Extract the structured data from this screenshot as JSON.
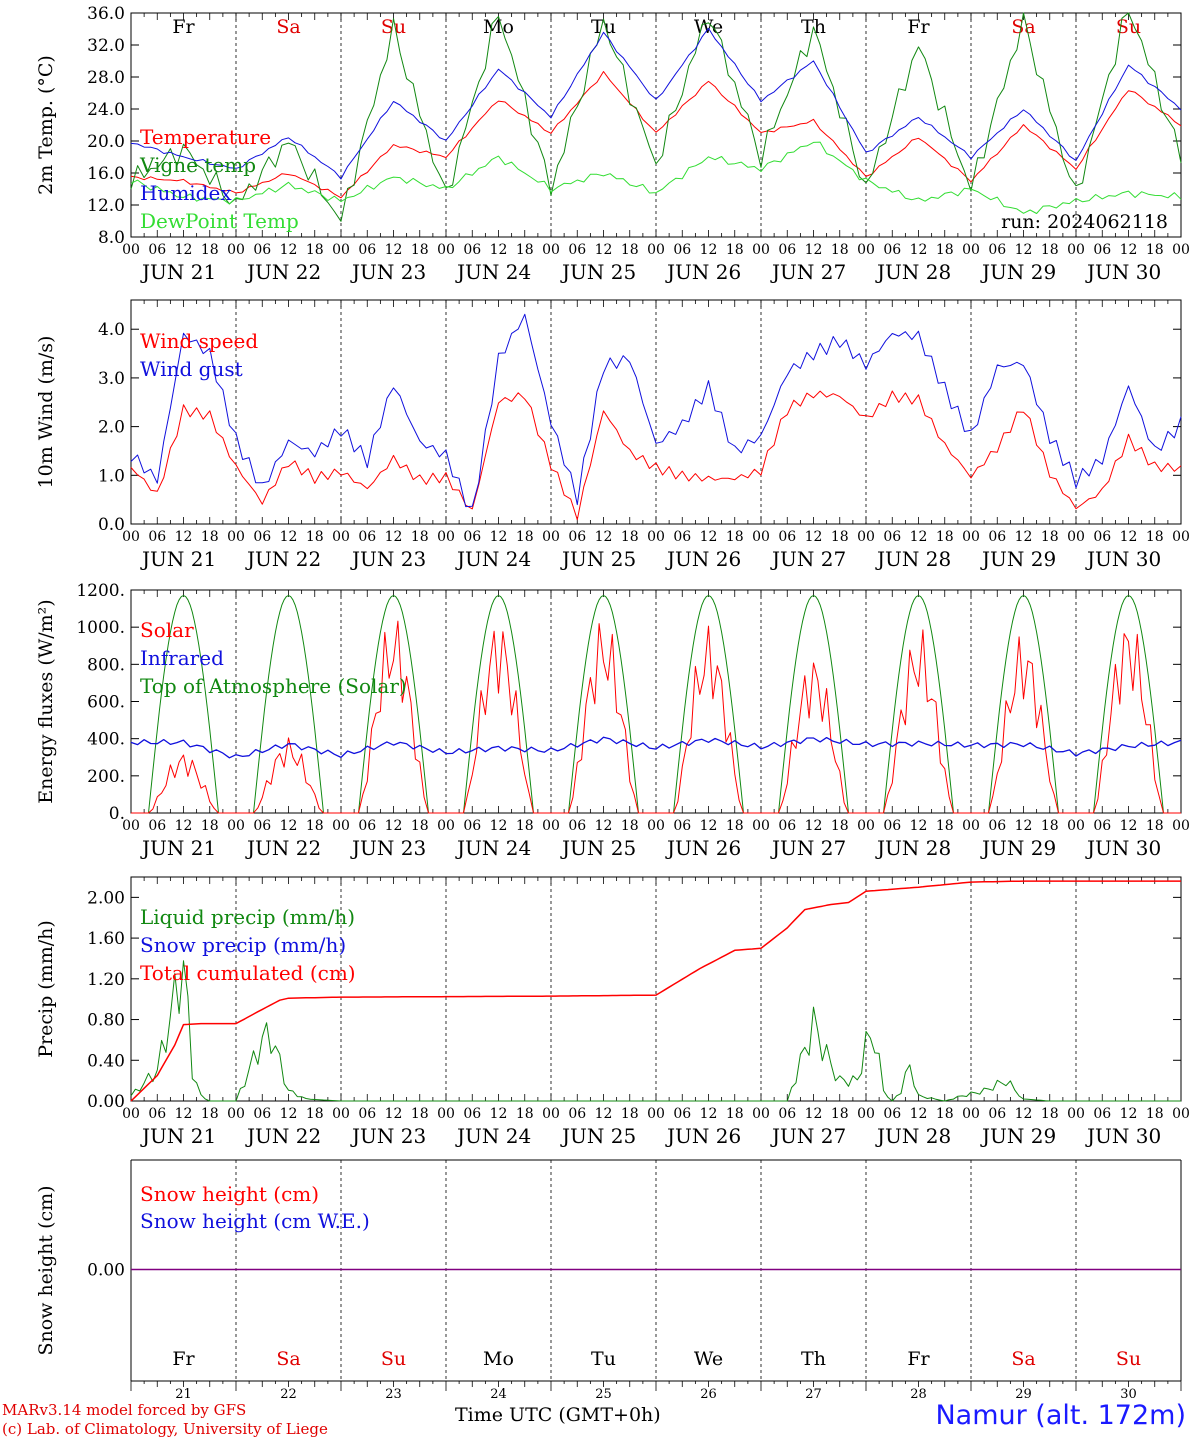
{
  "run_label": "run: 2024062118",
  "footer": {
    "model_line": "MARv3.14 model forced by GFS",
    "credit_line": "(c) Lab. of Climatology, University of Liege",
    "time_label": "Time UTC (GMT+0h)",
    "station": "Namur (alt. 172m)"
  },
  "colors": {
    "red": "#ff0000",
    "green": "#118811",
    "blue": "#1010dd",
    "lime": "#33dd33",
    "purple": "#800080"
  },
  "days": {
    "names": [
      "Fr",
      "Sa",
      "Su",
      "Mo",
      "Tu",
      "We",
      "Th",
      "Fr",
      "Sa",
      "Su"
    ],
    "weekend": [
      false,
      true,
      true,
      false,
      false,
      false,
      false,
      false,
      true,
      true
    ],
    "labels": [
      "JUN 21",
      "JUN 22",
      "JUN 23",
      "JUN 24",
      "JUN 25",
      "JUN 26",
      "JUN 27",
      "JUN 28",
      "JUN 29",
      "JUN 30"
    ],
    "numbers": [
      "21",
      "22",
      "23",
      "24",
      "25",
      "26",
      "27",
      "28",
      "29",
      "30"
    ],
    "hour_ticks": [
      "00",
      "06",
      "12",
      "18"
    ],
    "last_tick": "00"
  },
  "chart_data": [
    {
      "type": "line",
      "ylabel": "2m Temp. (°C)",
      "ylim": [
        8,
        36
      ],
      "yticks": [
        "8.0",
        "12.0",
        "16.0",
        "20.0",
        "24.0",
        "28.0",
        "32.0",
        "36.0"
      ],
      "x_hours": [
        0,
        12,
        24,
        36,
        48,
        60,
        72,
        84,
        96,
        108,
        120,
        132,
        144,
        156,
        168,
        180,
        192,
        204,
        216,
        228,
        240
      ],
      "series": [
        {
          "name": "Temperature",
          "color": "red",
          "values": [
            15.5,
            15,
            13.5,
            16,
            13,
            19.5,
            18,
            25.2,
            21,
            28.5,
            21,
            27.5,
            21,
            22.5,
            15.5,
            20.5,
            15,
            22,
            16.5,
            26.5,
            22
          ]
        },
        {
          "name": "Vigne temp",
          "color": "green",
          "values": [
            15,
            19,
            12,
            20,
            10,
            34,
            13,
            36,
            14,
            35,
            17,
            36,
            18,
            34,
            14,
            32,
            14,
            35,
            13,
            37,
            18
          ]
        },
        {
          "name": "Humidex",
          "color": "blue",
          "values": [
            19.8,
            18,
            16.5,
            20.5,
            15.5,
            25,
            20,
            29,
            23,
            33.5,
            25,
            34,
            25,
            30,
            18.5,
            23,
            18,
            24,
            17.5,
            29.5,
            24
          ]
        },
        {
          "name": "DewPoint Temp",
          "color": "lime",
          "values": [
            15,
            13,
            12.5,
            14.5,
            12.5,
            15.5,
            14,
            18,
            14,
            16,
            13.5,
            18,
            16.5,
            20,
            15,
            12.5,
            14,
            11,
            12.5,
            13.5,
            13
          ]
        }
      ]
    },
    {
      "type": "line",
      "ylabel": "10m Wind (m/s)",
      "ylim": [
        0,
        4.6
      ],
      "yticks": [
        "0.0",
        "1.0",
        "2.0",
        "3.0",
        "4.0"
      ],
      "x_hours": [
        0,
        6,
        12,
        18,
        24,
        30,
        36,
        42,
        48,
        54,
        60,
        66,
        72,
        78,
        84,
        90,
        96,
        102,
        108,
        114,
        120,
        126,
        132,
        138,
        144,
        150,
        156,
        162,
        168,
        174,
        180,
        186,
        192,
        198,
        204,
        210,
        216,
        222,
        228,
        234,
        240
      ],
      "series": [
        {
          "name": "Wind speed",
          "color": "red",
          "values": [
            1.1,
            0.6,
            2.4,
            2.3,
            1.2,
            0.4,
            1.2,
            0.9,
            1.1,
            0.8,
            1.4,
            0.9,
            0.9,
            0.2,
            2.5,
            2.7,
            1.3,
            0.2,
            2.3,
            1.4,
            1.1,
            1.0,
            1.0,
            1.0,
            1.1,
            2.3,
            2.6,
            2.6,
            2.2,
            2.7,
            2.6,
            1.6,
            0.9,
            1.5,
            2.4,
            1.1,
            0.4,
            0.7,
            1.7,
            1.1,
            1.1
          ]
        },
        {
          "name": "Wind gust",
          "color": "blue",
          "values": [
            1.5,
            0.9,
            3.8,
            3.4,
            1.7,
            0.8,
            1.8,
            1.5,
            1.9,
            1.2,
            2.8,
            1.7,
            1.5,
            0.3,
            3.4,
            4.2,
            2.0,
            0.5,
            3.3,
            3.5,
            1.7,
            2.0,
            2.7,
            1.4,
            1.8,
            3.2,
            3.6,
            3.8,
            3.2,
            3.8,
            3.8,
            2.8,
            1.9,
            3.3,
            3.3,
            1.7,
            0.8,
            1.3,
            2.9,
            1.6,
            2.1
          ]
        }
      ]
    },
    {
      "type": "line",
      "ylabel": "Energy fluxes (W/m²)",
      "ylim": [
        0,
        1200
      ],
      "yticks": [
        "0.",
        "200.",
        "400.",
        "600.",
        "800.",
        "1000.",
        "1200."
      ],
      "toa_peak": 1170,
      "solar_day_peaks": [
        270,
        330,
        870,
        860,
        860,
        820,
        700,
        810,
        790,
        870
      ],
      "infrared_values": [
        380,
        380,
        300,
        370,
        310,
        380,
        325,
        350,
        335,
        400,
        350,
        395,
        355,
        400,
        370,
        375,
        365,
        370,
        320,
        360,
        380
      ],
      "series": [
        {
          "name": "Solar",
          "color": "red"
        },
        {
          "name": "Infrared",
          "color": "blue"
        },
        {
          "name": "Top of Atmosphere (Solar)",
          "color": "green"
        }
      ]
    },
    {
      "type": "line",
      "ylabel": "Precip (mm/h)",
      "ylim": [
        0,
        2.2
      ],
      "yticks": [
        "0.00",
        "0.40",
        "0.80",
        "1.20",
        "1.60",
        "2.00"
      ],
      "series": [
        {
          "name": "Liquid precip (mm/h)",
          "color": "green",
          "x_hours": [
            0,
            6,
            10,
            12,
            14,
            16,
            18,
            24,
            30,
            32,
            36,
            40,
            48,
            150,
            156,
            160,
            162,
            166,
            168,
            170,
            172,
            174,
            176,
            178,
            180,
            186,
            190,
            195,
            200,
            204,
            210,
            220,
            228,
            240
          ],
          "values": [
            0.05,
            0.3,
            1.0,
            1.35,
            0.3,
            0.05,
            0,
            0,
            0.6,
            0.65,
            0.1,
            0.02,
            0,
            0,
            0.75,
            0.35,
            0.2,
            0.2,
            0.55,
            0.65,
            0.1,
            0,
            0.1,
            0.35,
            0.05,
            0,
            0.05,
            0.1,
            0.2,
            0.02,
            0,
            0,
            0,
            0
          ]
        },
        {
          "name": "Snow precip (mm/h)",
          "color": "blue"
        },
        {
          "name": "Total cumulated (cm)",
          "color": "red",
          "x_hours": [
            0,
            6,
            10,
            12,
            16,
            24,
            30,
            34,
            36,
            48,
            96,
            120,
            130,
            138,
            144,
            150,
            154,
            160,
            164,
            168,
            180,
            192,
            204,
            240
          ],
          "values": [
            0,
            0.25,
            0.55,
            0.75,
            0.76,
            0.76,
            0.9,
            0.99,
            1.01,
            1.02,
            1.03,
            1.04,
            1.3,
            1.48,
            1.5,
            1.7,
            1.88,
            1.93,
            1.95,
            2.06,
            2.1,
            2.15,
            2.16,
            2.16
          ]
        }
      ]
    },
    {
      "type": "line",
      "ylabel": "Snow height (cm)",
      "yticks": [
        "0.00"
      ],
      "series": [
        {
          "name": "Snow height (cm)",
          "color": "red",
          "value": 0
        },
        {
          "name": "Snow height (cm W.E.)",
          "color": "blue",
          "value": 0
        }
      ]
    }
  ]
}
